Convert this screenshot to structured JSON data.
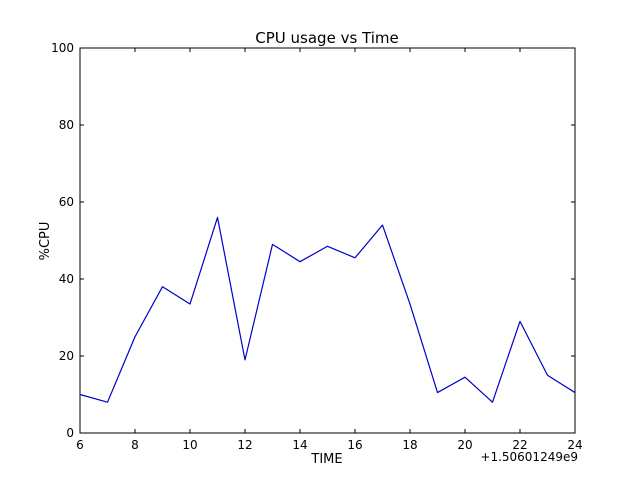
{
  "chart_data": {
    "type": "line",
    "title": "CPU usage vs Time",
    "xlabel": "TIME",
    "ylabel": "%CPU",
    "x_offset_label": "+1.50601249e9",
    "xlim": [
      6,
      24
    ],
    "ylim": [
      0,
      100
    ],
    "xticks": [
      6,
      8,
      10,
      12,
      14,
      16,
      18,
      20,
      22,
      24
    ],
    "yticks": [
      0,
      20,
      40,
      60,
      80,
      100
    ],
    "grid": false,
    "legend": "none",
    "line_color": "#0000cc",
    "series": [
      {
        "x": [
          6,
          7,
          8,
          9,
          10,
          11,
          12,
          13,
          14,
          15,
          16,
          17,
          18,
          19,
          20,
          21,
          22,
          23,
          24
        ],
        "y": [
          10,
          8,
          25,
          38,
          33.5,
          56,
          19,
          49,
          44.5,
          48.5,
          45.5,
          54,
          33.5,
          10.5,
          14.5,
          8,
          29,
          15,
          10.5
        ]
      }
    ]
  }
}
